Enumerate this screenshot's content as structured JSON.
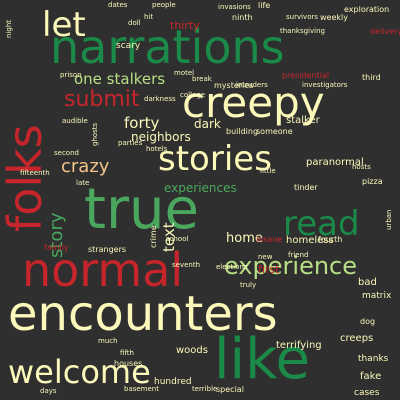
{
  "words": [
    {
      "text": "narrations",
      "color": "c-dgreen"
    },
    {
      "text": "folks",
      "color": "c-red"
    },
    {
      "text": "creepy",
      "color": "c-cream"
    },
    {
      "text": "stories",
      "color": "c-cream"
    },
    {
      "text": "true",
      "color": "c-green"
    },
    {
      "text": "read",
      "color": "c-dgreen"
    },
    {
      "text": "normal",
      "color": "c-red"
    },
    {
      "text": "experience",
      "color": "c-lgreen"
    },
    {
      "text": "encounters",
      "color": "c-cream"
    },
    {
      "text": "like",
      "color": "c-dgreen"
    },
    {
      "text": "welcome",
      "color": "c-cream"
    },
    {
      "text": "let",
      "color": "c-cream"
    },
    {
      "text": "submit",
      "color": "c-red"
    },
    {
      "text": "one stalkers",
      "color": "c-lgreen"
    },
    {
      "text": "crazy",
      "color": "c-peach"
    },
    {
      "text": "story",
      "color": "c-green"
    },
    {
      "text": "forty",
      "color": "c-cream"
    },
    {
      "text": "neighbors",
      "color": "c-cream"
    },
    {
      "text": "dark",
      "color": "c-cream"
    },
    {
      "text": "home",
      "color": "c-cream"
    },
    {
      "text": "text",
      "color": "c-cream"
    },
    {
      "text": "experiences",
      "color": "c-green"
    },
    {
      "text": "thirty",
      "color": "c-red"
    },
    {
      "text": "paranormal",
      "color": "c-cream"
    },
    {
      "text": "homeless",
      "color": "c-cream"
    },
    {
      "text": "first",
      "color": "c-red"
    },
    {
      "text": "bad",
      "color": "c-cream"
    },
    {
      "text": "matrix",
      "color": "c-cream"
    },
    {
      "text": "terrifying",
      "color": "c-cream"
    },
    {
      "text": "fake",
      "color": "c-cream"
    },
    {
      "text": "thanks",
      "color": "c-cream"
    },
    {
      "text": "creeps",
      "color": "c-cream"
    },
    {
      "text": "woods",
      "color": "c-cream"
    },
    {
      "text": "hundred",
      "color": "c-cream"
    },
    {
      "text": "cases",
      "color": "c-cream"
    },
    {
      "text": "scary",
      "color": "c-cream"
    },
    {
      "text": "ninth",
      "color": "c-cream"
    },
    {
      "text": "life",
      "color": "c-cream"
    },
    {
      "text": "exploration",
      "color": "c-cream"
    },
    {
      "text": "delivery",
      "color": "c-red"
    },
    {
      "text": "weekly",
      "color": "c-cream"
    },
    {
      "text": "survivors",
      "color": "c-cream"
    },
    {
      "text": "thanksgiving",
      "color": "c-cream"
    },
    {
      "text": "presidential",
      "color": "c-red"
    },
    {
      "text": "investigators",
      "color": "c-cream"
    },
    {
      "text": "third",
      "color": "c-cream"
    },
    {
      "text": "mysteries",
      "color": "c-cream"
    },
    {
      "text": "intruders",
      "color": "c-cream"
    },
    {
      "text": "break",
      "color": "c-cream"
    },
    {
      "text": "darkness",
      "color": "c-cream"
    },
    {
      "text": "college",
      "color": "c-cream"
    },
    {
      "text": "stalker",
      "color": "c-cream"
    },
    {
      "text": "building",
      "color": "c-cream"
    },
    {
      "text": "someone",
      "color": "c-cream"
    },
    {
      "text": "school",
      "color": "c-cream"
    },
    {
      "text": "seventh",
      "color": "c-cream"
    },
    {
      "text": "elections",
      "color": "c-cream"
    },
    {
      "text": "fourth",
      "color": "c-cream"
    },
    {
      "text": "strangers",
      "color": "c-cream"
    },
    {
      "text": "family",
      "color": "c-red"
    },
    {
      "text": "second",
      "color": "c-cream"
    },
    {
      "text": "fifteenth",
      "color": "c-cream"
    },
    {
      "text": "houses",
      "color": "c-cream"
    },
    {
      "text": "special",
      "color": "c-cream"
    },
    {
      "text": "terrible",
      "color": "c-cream"
    },
    {
      "text": "basement",
      "color": "c-cream"
    },
    {
      "text": "days",
      "color": "c-cream"
    },
    {
      "text": "hotels",
      "color": "c-cream"
    },
    {
      "text": "parties",
      "color": "c-cream"
    },
    {
      "text": "ghosts",
      "color": "c-cream"
    },
    {
      "text": "tinder",
      "color": "c-cream"
    },
    {
      "text": "friend",
      "color": "c-cream"
    },
    {
      "text": "new",
      "color": "c-cream"
    },
    {
      "text": "pizza",
      "color": "c-cream"
    },
    {
      "text": "hosts",
      "color": "c-cream"
    },
    {
      "text": "fifth",
      "color": "c-cream"
    },
    {
      "text": "insane",
      "color": "c-red"
    },
    {
      "text": "crime",
      "color": "c-cream"
    },
    {
      "text": "audible",
      "color": "c-cream"
    },
    {
      "text": "prison",
      "color": "c-cream"
    },
    {
      "text": "night",
      "color": "c-cream"
    },
    {
      "text": "motel",
      "color": "c-cream"
    },
    {
      "text": "doll",
      "color": "c-cream"
    },
    {
      "text": "dates",
      "color": "c-cream"
    },
    {
      "text": "hit",
      "color": "c-cream"
    },
    {
      "text": "people",
      "color": "c-cream"
    },
    {
      "text": "invasions",
      "color": "c-cream"
    },
    {
      "text": "late",
      "color": "c-cream"
    },
    {
      "text": "little",
      "color": "c-cream"
    },
    {
      "text": "truly",
      "color": "c-cream"
    },
    {
      "text": "dog",
      "color": "c-cream"
    },
    {
      "text": "urban",
      "color": "c-cream"
    },
    {
      "text": "much",
      "color": "c-cream"
    }
  ]
}
